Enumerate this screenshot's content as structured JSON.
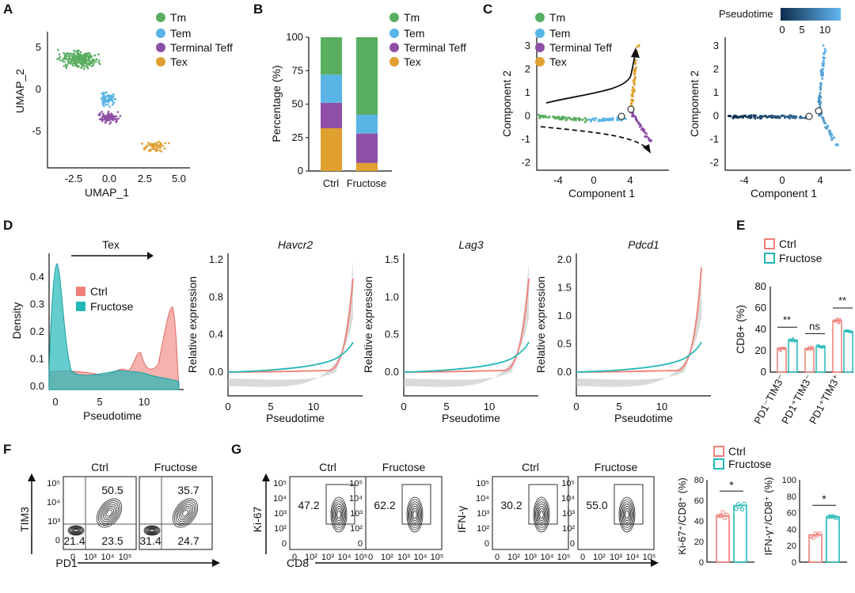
{
  "colors": {
    "tm": "#5aae61",
    "tem": "#5ab4e6",
    "teff": "#8e4fa6",
    "tex": "#e0a030",
    "ctrl": "#ef7f78",
    "fructose": "#22b8b8",
    "dark": "#0d2c4d"
  },
  "panel_letters": {
    "a": "A",
    "b": "B",
    "c": "C",
    "d": "D",
    "e": "E",
    "f": "F",
    "g": "G"
  },
  "legend_states": [
    "Tm",
    "Tem",
    "Terminal Teff",
    "Tex"
  ],
  "legend_groups": [
    "Ctrl",
    "Fructose"
  ],
  "panelA": {
    "xlabel": "UMAP_1",
    "ylabel": "UMAP_2",
    "xticks": [
      "-2.5",
      "0.0",
      "2.5",
      "5.0"
    ],
    "yticks": [
      "5",
      "0",
      "-5"
    ]
  },
  "panelB": {
    "ylabel": "Percentage (%)",
    "yticks": [
      "0",
      "25",
      "50",
      "75",
      "100"
    ],
    "categories": [
      "Ctrl",
      "Fructose"
    ]
  },
  "panelC": {
    "xlabel": "Component 1",
    "ylabel": "Component 2",
    "xticks": [
      "-4",
      "0",
      "4"
    ],
    "yticks": [
      "3",
      "2",
      "1",
      "0",
      "-1",
      "-2"
    ],
    "pseudo_title": "Pseudotime",
    "pseudo_ticks": [
      "0",
      "5",
      "10"
    ]
  },
  "panelD": {
    "arrow_label": "Tex",
    "density_ylabel": "Density",
    "density_yticks": [
      "0.0",
      "0.1",
      "0.2",
      "0.3",
      "0.4"
    ],
    "xlabel": "Pseudotime",
    "xticks": [
      "0",
      "5",
      "10"
    ],
    "expr_ylabel": "Relative expression",
    "genes": [
      {
        "name": "Havcr2",
        "yticks": [
          "0.0",
          "0.4",
          "0.8",
          "1.2"
        ]
      },
      {
        "name": "Lag3",
        "yticks": [
          "0.0",
          "0.5",
          "1.0",
          "1.5"
        ]
      },
      {
        "name": "Pdcd1",
        "yticks": [
          "0.0",
          "0.5",
          "1.0",
          "1.5",
          "2.0"
        ]
      }
    ]
  },
  "panelE": {
    "ylabel": "CD8+ (%)",
    "yticks": [
      "0",
      "20",
      "40",
      "60",
      "80"
    ],
    "groups": [
      "PD1⁻TIM3⁻",
      "PD1⁺TIM3⁻",
      "PD1⁺TIM3⁺"
    ],
    "sig": [
      "**",
      "ns",
      "**"
    ]
  },
  "panelF": {
    "xlabel": "PD1",
    "ylabel": "TIM3",
    "titles": [
      "Ctrl",
      "Fructose"
    ],
    "quadrants": [
      {
        "ul": "",
        "ur": "50.5",
        "ll": "21.4",
        "lr": "23.5"
      },
      {
        "ul": "",
        "ur": "35.7",
        "ll": "31.4",
        "lr": "24.7"
      }
    ],
    "xticks": [
      "0",
      "10³",
      "10⁴",
      "10⁵"
    ],
    "yticks": [
      "10⁵",
      "10⁴",
      "10³",
      "0"
    ]
  },
  "panelG": {
    "xlabel": "CD8",
    "ylabel1": "Ki-67",
    "ylabel2": "IFN-γ",
    "titles": [
      "Ctrl",
      "Fructose",
      "Ctrl",
      "Fructose"
    ],
    "values": [
      "47.2",
      "62.2",
      "30.2",
      "55.0"
    ],
    "xticks": [
      "0",
      "10²",
      "10³",
      "10⁴",
      "10⁵"
    ],
    "yticks": [
      "10⁵",
      "10⁴",
      "10³",
      "10²",
      "0"
    ],
    "bar1_ylabel": "Ki-67⁺/CD8⁺ (%)",
    "bar1_yticks": [
      "0",
      "20",
      "40",
      "60",
      "80"
    ],
    "bar2_ylabel": "IFN-γ⁺/CD8⁺ (%)",
    "bar2_yticks": [
      "0",
      "20",
      "40",
      "60",
      "80",
      "100"
    ],
    "sig": "*"
  },
  "chart_data": [
    {
      "id": "B",
      "type": "bar",
      "title": "",
      "categories": [
        "Ctrl",
        "Fructose"
      ],
      "ylim": [
        0,
        100
      ],
      "ylabel": "Percentage (%)",
      "stacked": true,
      "series": [
        {
          "name": "Tex",
          "values": [
            32,
            6
          ]
        },
        {
          "name": "Terminal Teff",
          "values": [
            19,
            22
          ]
        },
        {
          "name": "Tem",
          "values": [
            21,
            14
          ]
        },
        {
          "name": "Tm",
          "values": [
            28,
            58
          ]
        }
      ]
    },
    {
      "id": "E",
      "type": "bar",
      "categories": [
        "PD1-TIM3-",
        "PD1+TIM3-",
        "PD1+TIM3+"
      ],
      "ylim": [
        0,
        80
      ],
      "ylabel": "CD8+ (%)",
      "series": [
        {
          "name": "Ctrl",
          "values": [
            22,
            22,
            48
          ]
        },
        {
          "name": "Fructose",
          "values": [
            30,
            24,
            38
          ]
        }
      ]
    },
    {
      "id": "G1",
      "type": "bar",
      "categories": [
        "Ctrl",
        "Fructose"
      ],
      "ylim": [
        0,
        80
      ],
      "ylabel": "Ki-67+/CD8+ (%)",
      "values": [
        45,
        55
      ]
    },
    {
      "id": "G2",
      "type": "bar",
      "categories": [
        "Ctrl",
        "Fructose"
      ],
      "ylim": [
        0,
        100
      ],
      "ylabel": "IFN-g+/CD8+ (%)",
      "values": [
        33,
        55
      ]
    }
  ]
}
